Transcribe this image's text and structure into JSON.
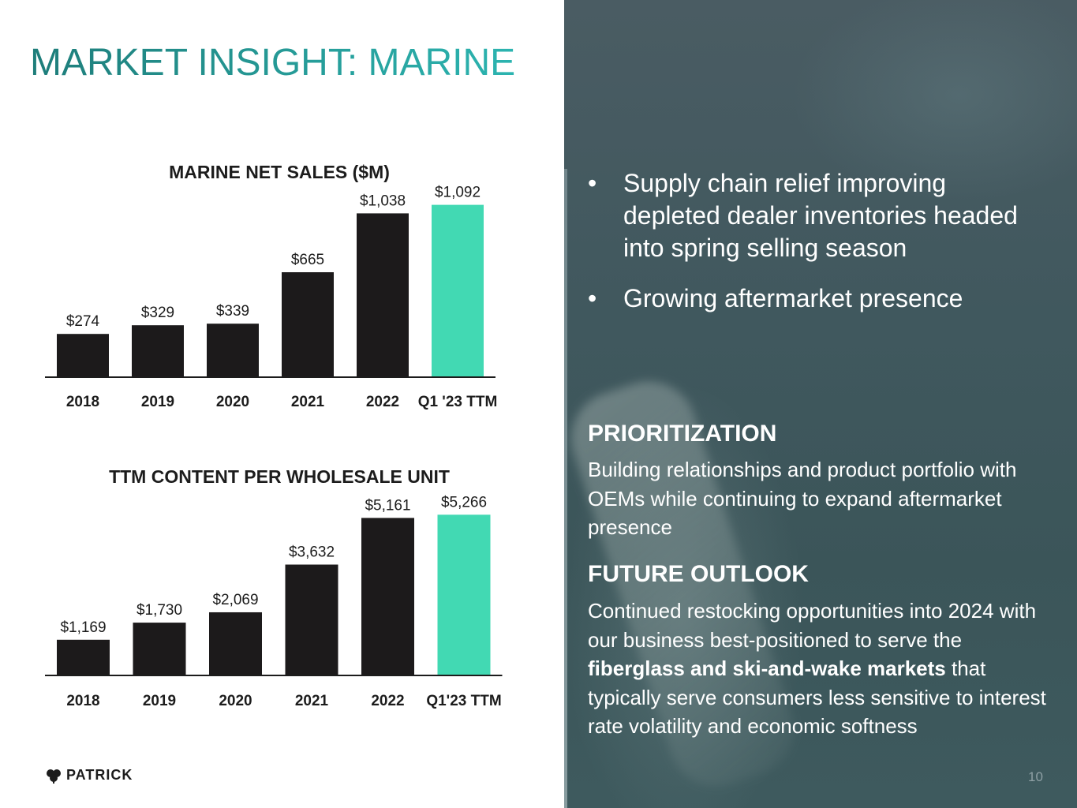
{
  "slide": {
    "title": "MARKET INSIGHT: MARINE",
    "page_number": "10",
    "logo_text": "PATRICK"
  },
  "colors": {
    "bar_dark": "#1c1a1b",
    "bar_highlight": "#42d9b3",
    "title_teal": "#1e9490",
    "panel": "#40585e"
  },
  "chart_data": [
    {
      "type": "bar",
      "title": "MARINE NET SALES ($M)",
      "categories": [
        "2018",
        "2019",
        "2020",
        "2021",
        "2022",
        "Q1 '23 TTM"
      ],
      "values": [
        274,
        329,
        339,
        665,
        1038,
        1092
      ],
      "value_labels": [
        "$274",
        "$329",
        "$339",
        "$665",
        "$1,038",
        "$1,092"
      ],
      "highlight_index": 5,
      "ylim": [
        0,
        1100
      ],
      "xlabel": "",
      "ylabel": ""
    },
    {
      "type": "bar",
      "title": "TTM CONTENT PER WHOLESALE UNIT",
      "categories": [
        "2018",
        "2019",
        "2020",
        "2021",
        "2022",
        "Q1'23 TTM"
      ],
      "values": [
        1169,
        1730,
        2069,
        3632,
        5161,
        5266
      ],
      "value_labels": [
        "$1,169",
        "$1,730",
        "$2,069",
        "$3,632",
        "$5,161",
        "$5,266"
      ],
      "highlight_index": 5,
      "ylim": [
        0,
        5300
      ],
      "xlabel": "",
      "ylabel": ""
    }
  ],
  "bullets": [
    {
      "marker": "•",
      "text": "Supply chain relief improving depleted dealer inventories headed into spring selling season"
    },
    {
      "marker": "•",
      "text": "Growing aftermarket presence"
    }
  ],
  "prioritization": {
    "heading": "PRIORITIZATION",
    "body": "Building relationships and product portfolio with OEMs while continuing to expand aftermarket presence"
  },
  "future_outlook": {
    "heading": "FUTURE OUTLOOK",
    "body_pre": "Continued restocking opportunities into 2024 with our business best-positioned to serve the ",
    "body_bold": "fiberglass and ski-and-wake markets",
    "body_post": " that typically serve consumers less sensitive to interest rate volatility and economic softness"
  }
}
